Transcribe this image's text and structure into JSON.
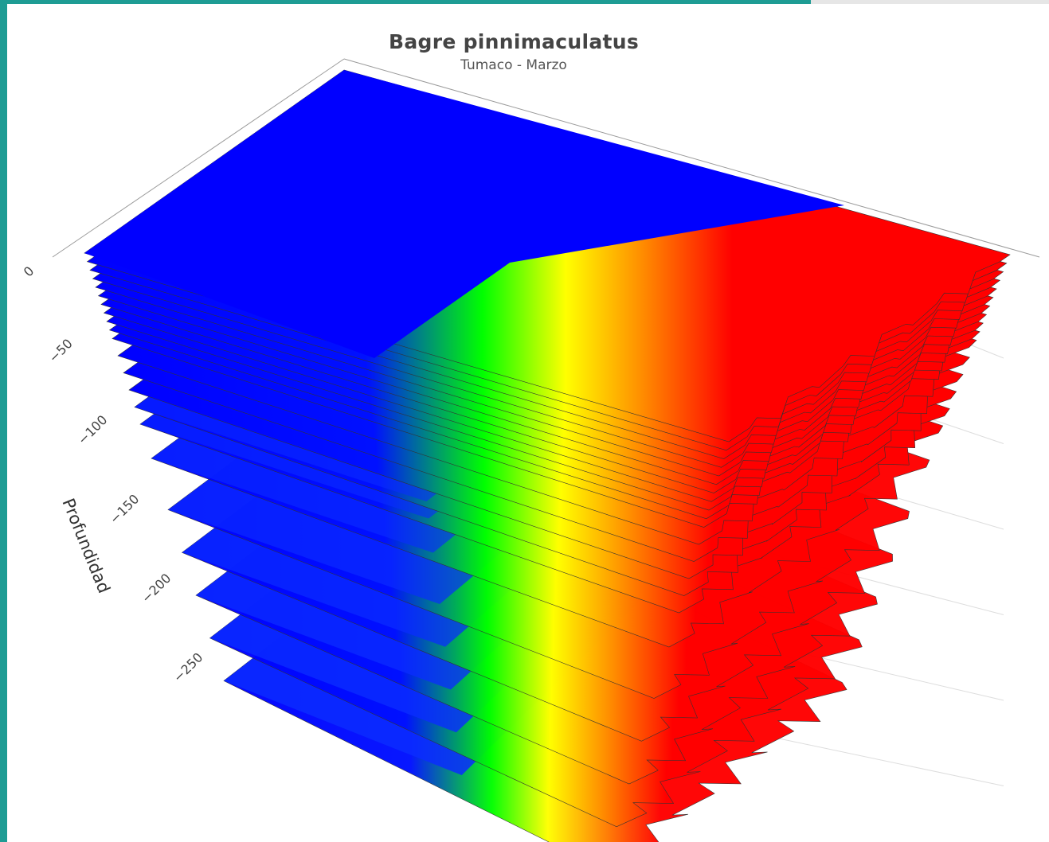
{
  "chart_data": {
    "type": "surface",
    "title": "Bagre pinnimaculatus",
    "subtitle": "Tumaco - Marzo",
    "zlabel": "Profundidad",
    "z_ticks": [
      0,
      -50,
      -100,
      -150,
      -200,
      -250
    ],
    "layers": [
      {
        "depth": 0
      },
      {
        "depth": -5
      },
      {
        "depth": -10
      },
      {
        "depth": -15
      },
      {
        "depth": -20
      },
      {
        "depth": -25
      },
      {
        "depth": -30
      },
      {
        "depth": -35
      },
      {
        "depth": -40
      },
      {
        "depth": -45
      },
      {
        "depth": -50
      },
      {
        "depth": -60
      },
      {
        "depth": -70
      },
      {
        "depth": -80
      },
      {
        "depth": -90
      },
      {
        "depth": -100
      },
      {
        "depth": -120
      },
      {
        "depth": -150
      },
      {
        "depth": -175
      },
      {
        "depth": -200
      },
      {
        "depth": -225
      },
      {
        "depth": -250
      }
    ],
    "colorscale": [
      "#0000ff",
      "#00ff00",
      "#ffff00",
      "#ff0000"
    ]
  }
}
